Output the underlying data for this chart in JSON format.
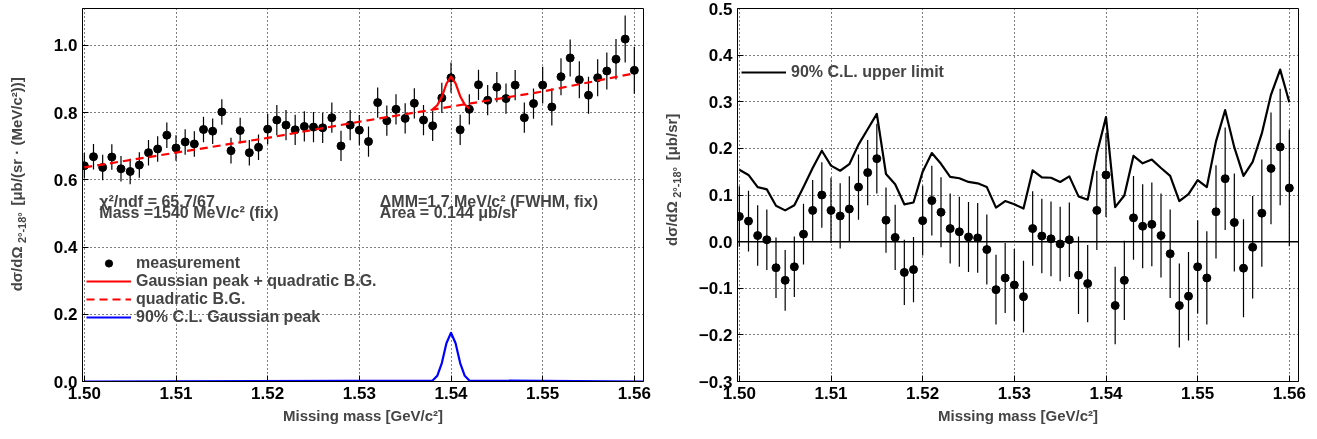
{
  "chart_data": [
    {
      "type": "scatter",
      "xlabel": "Missing mass [GeV/c²]",
      "ylabel": "dσ/dΩ$_{2°-18°}$ [μb/(sr · (MeV/c²))]",
      "xlim": [
        1.4998,
        1.561
      ],
      "ylim": [
        0,
        1.11
      ],
      "xticks": [
        {
          "value": 1.5,
          "label": "1.50"
        },
        1.51,
        1.52,
        1.53,
        1.54,
        1.55,
        1.56
      ],
      "yticks": [
        {
          "value": 0,
          "label": "0.0"
        },
        0.2,
        0.4,
        0.6,
        0.8,
        {
          "value": 1.0,
          "label": "1.0"
        }
      ],
      "grid": true,
      "legend": "bottom left",
      "annotations": [
        "χ²/ndf = 65.7/67",
        "Mass =1540 MeV/c² (fix)",
        "ΔMM=1.7 MeV/c² (FWHM, fix)",
        "Area = 0.144  μb/sr"
      ],
      "x": [
        1.5,
        1.501,
        1.502,
        1.503,
        1.504,
        1.505,
        1.506,
        1.507,
        1.508,
        1.509,
        1.51,
        1.511,
        1.512,
        1.513,
        1.514,
        1.515,
        1.516,
        1.517,
        1.518,
        1.519,
        1.52,
        1.521,
        1.522,
        1.523,
        1.524,
        1.525,
        1.526,
        1.527,
        1.528,
        1.529,
        1.53,
        1.531,
        1.532,
        1.533,
        1.534,
        1.535,
        1.536,
        1.537,
        1.538,
        1.539,
        1.54,
        1.541,
        1.542,
        1.543,
        1.544,
        1.545,
        1.546,
        1.547,
        1.548,
        1.549,
        1.55,
        1.551,
        1.552,
        1.553,
        1.554,
        1.555,
        1.556,
        1.557,
        1.558,
        1.559,
        1.56
      ],
      "series": [
        {
          "name": "measurement",
          "marker": "circle",
          "color": "#000000",
          "values": [
            0.642,
            0.669,
            0.637,
            0.668,
            0.633,
            0.625,
            0.644,
            0.681,
            0.692,
            0.733,
            0.695,
            0.713,
            0.707,
            0.75,
            0.745,
            0.802,
            0.687,
            0.747,
            0.681,
            0.697,
            0.751,
            0.778,
            0.763,
            0.749,
            0.759,
            0.757,
            0.755,
            0.785,
            0.701,
            0.763,
            0.748,
            0.714,
            0.83,
            0.776,
            0.81,
            0.783,
            0.828,
            0.778,
            0.761,
            0.844,
            0.904,
            0.749,
            0.81,
            0.883,
            0.837,
            0.876,
            0.842,
            0.882,
            0.785,
            0.827,
            0.882,
            0.817,
            0.907,
            0.963,
            0.898,
            0.852,
            0.904,
            0.924,
            0.959,
            1.019,
            0.926
          ],
          "errors": [
            0.038,
            0.038,
            0.038,
            0.038,
            0.038,
            0.038,
            0.038,
            0.038,
            0.038,
            0.038,
            0.038,
            0.038,
            0.038,
            0.038,
            0.038,
            0.038,
            0.038,
            0.038,
            0.038,
            0.038,
            0.045,
            0.045,
            0.045,
            0.045,
            0.045,
            0.045,
            0.045,
            0.045,
            0.045,
            0.045,
            0.045,
            0.045,
            0.045,
            0.045,
            0.045,
            0.045,
            0.045,
            0.045,
            0.045,
            0.045,
            0.045,
            0.045,
            0.045,
            0.045,
            0.045,
            0.045,
            0.045,
            0.045,
            0.045,
            0.045,
            0.055,
            0.055,
            0.055,
            0.055,
            0.055,
            0.055,
            0.055,
            0.055,
            0.06,
            0.07,
            0.07
          ]
        },
        {
          "name": "Gaussian peak + quadratic B.G.",
          "type": "line",
          "color": "#ff0000",
          "x": [
            1.538,
            1.5385,
            1.539,
            1.5395,
            1.54,
            1.5405,
            1.541,
            1.5415,
            1.542
          ],
          "values": [
            0.81,
            0.822,
            0.847,
            0.886,
            0.907,
            0.887,
            0.849,
            0.824,
            0.813
          ]
        },
        {
          "name": "quadratic B.G.",
          "type": "line",
          "color": "#ff0000",
          "line_style": "dashed",
          "x": [
            1.5,
            1.51,
            1.52,
            1.53,
            1.54,
            1.55,
            1.56
          ],
          "values": [
            0.637,
            0.681,
            0.725,
            0.773,
            0.818,
            0.863,
            0.917
          ]
        },
        {
          "name": "90% C.L. Gaussian peak",
          "type": "line",
          "color": "#0000ff",
          "x": [
            1.5,
            1.538,
            1.5385,
            1.539,
            1.5395,
            1.54,
            1.5405,
            1.541,
            1.5415,
            1.542,
            1.561
          ],
          "values": [
            0,
            0.003,
            0.017,
            0.055,
            0.114,
            0.145,
            0.114,
            0.055,
            0.017,
            0.003,
            0
          ]
        }
      ]
    },
    {
      "type": "scatter",
      "xlabel": "Missing mass [GeV/c²]",
      "ylabel": "dσ/dΩ$_{2°-18°}$ [μb/sr]",
      "xlim": [
        1.4998,
        1.561
      ],
      "ylim": [
        -0.3,
        0.5
      ],
      "xticks": [
        {
          "value": 1.5,
          "label": "1.50"
        },
        1.51,
        1.52,
        1.53,
        1.54,
        1.55,
        1.56
      ],
      "yticks": [
        {
          "value": -0.3,
          "label": "−0.3"
        },
        {
          "value": -0.2,
          "label": "−0.2"
        },
        {
          "value": -0.1,
          "label": "−0.1"
        },
        {
          "value": 0,
          "label": "0.0"
        },
        0.1,
        0.2,
        0.3,
        0.4,
        0.5
      ],
      "grid": true,
      "legend": "top left",
      "ref_lines": [
        {
          "axis": "y",
          "value": 0,
          "color": "#000000"
        }
      ],
      "x": [
        1.5,
        1.501,
        1.502,
        1.503,
        1.504,
        1.505,
        1.506,
        1.507,
        1.508,
        1.509,
        1.51,
        1.511,
        1.512,
        1.513,
        1.514,
        1.515,
        1.516,
        1.517,
        1.518,
        1.519,
        1.52,
        1.521,
        1.522,
        1.523,
        1.524,
        1.525,
        1.526,
        1.527,
        1.528,
        1.529,
        1.53,
        1.531,
        1.532,
        1.533,
        1.534,
        1.535,
        1.536,
        1.537,
        1.538,
        1.539,
        1.54,
        1.541,
        1.542,
        1.543,
        1.544,
        1.545,
        1.546,
        1.547,
        1.548,
        1.549,
        1.55,
        1.551,
        1.552,
        1.553,
        1.554,
        1.555,
        1.556,
        1.557,
        1.558,
        1.559,
        1.56
      ],
      "series": [
        {
          "marker": "circle",
          "color": "#000000",
          "values": [
            0.054,
            0.044,
            0.013,
            0.004,
            -0.056,
            -0.083,
            -0.054,
            0.016,
            0.067,
            0.1,
            0.067,
            0.055,
            0.07,
            0.117,
            0.148,
            0.178,
            0.046,
            0.009,
            -0.066,
            -0.06,
            0.045,
            0.088,
            0.063,
            0.028,
            0.021,
            0.01,
            0.008,
            -0.017,
            -0.103,
            -0.078,
            -0.093,
            -0.118,
            0.028,
            0.012,
            0.006,
            -0.005,
            0.004,
            -0.072,
            -0.09,
            0.067,
            0.143,
            -0.137,
            -0.083,
            0.051,
            0.033,
            0.037,
            0.013,
            -0.026,
            -0.137,
            -0.117,
            -0.054,
            -0.078,
            0.064,
            0.135,
            0.041,
            -0.057,
            -0.012,
            0.061,
            0.157,
            0.203,
            0.115
          ],
          "errors": [
            0.065,
            0.065,
            0.065,
            0.065,
            0.065,
            0.065,
            0.065,
            0.065,
            0.065,
            0.07,
            0.07,
            0.07,
            0.07,
            0.07,
            0.07,
            0.075,
            0.07,
            0.07,
            0.07,
            0.07,
            0.075,
            0.075,
            0.075,
            0.075,
            0.075,
            0.075,
            0.075,
            0.075,
            0.075,
            0.075,
            0.077,
            0.077,
            0.08,
            0.08,
            0.08,
            0.08,
            0.08,
            0.083,
            0.083,
            0.085,
            0.09,
            0.083,
            0.085,
            0.09,
            0.09,
            0.09,
            0.09,
            0.095,
            0.09,
            0.095,
            0.1,
            0.1,
            0.1,
            0.11,
            0.105,
            0.105,
            0.11,
            0.115,
            0.12,
            0.125,
            0.125
          ]
        },
        {
          "name": "90% C.L. upper limit",
          "type": "line",
          "color": "#000000",
          "values": [
            0.154,
            0.143,
            0.117,
            0.112,
            0.077,
            0.067,
            0.078,
            0.117,
            0.158,
            0.195,
            0.163,
            0.152,
            0.166,
            0.208,
            0.241,
            0.274,
            0.145,
            0.123,
            0.08,
            0.084,
            0.15,
            0.19,
            0.167,
            0.139,
            0.136,
            0.128,
            0.125,
            0.117,
            0.073,
            0.087,
            0.08,
            0.071,
            0.153,
            0.138,
            0.137,
            0.128,
            0.14,
            0.097,
            0.09,
            0.189,
            0.267,
            0.074,
            0.099,
            0.184,
            0.168,
            0.176,
            0.158,
            0.141,
            0.087,
            0.102,
            0.132,
            0.117,
            0.215,
            0.282,
            0.202,
            0.141,
            0.171,
            0.232,
            0.315,
            0.369,
            0.299
          ]
        }
      ]
    }
  ]
}
